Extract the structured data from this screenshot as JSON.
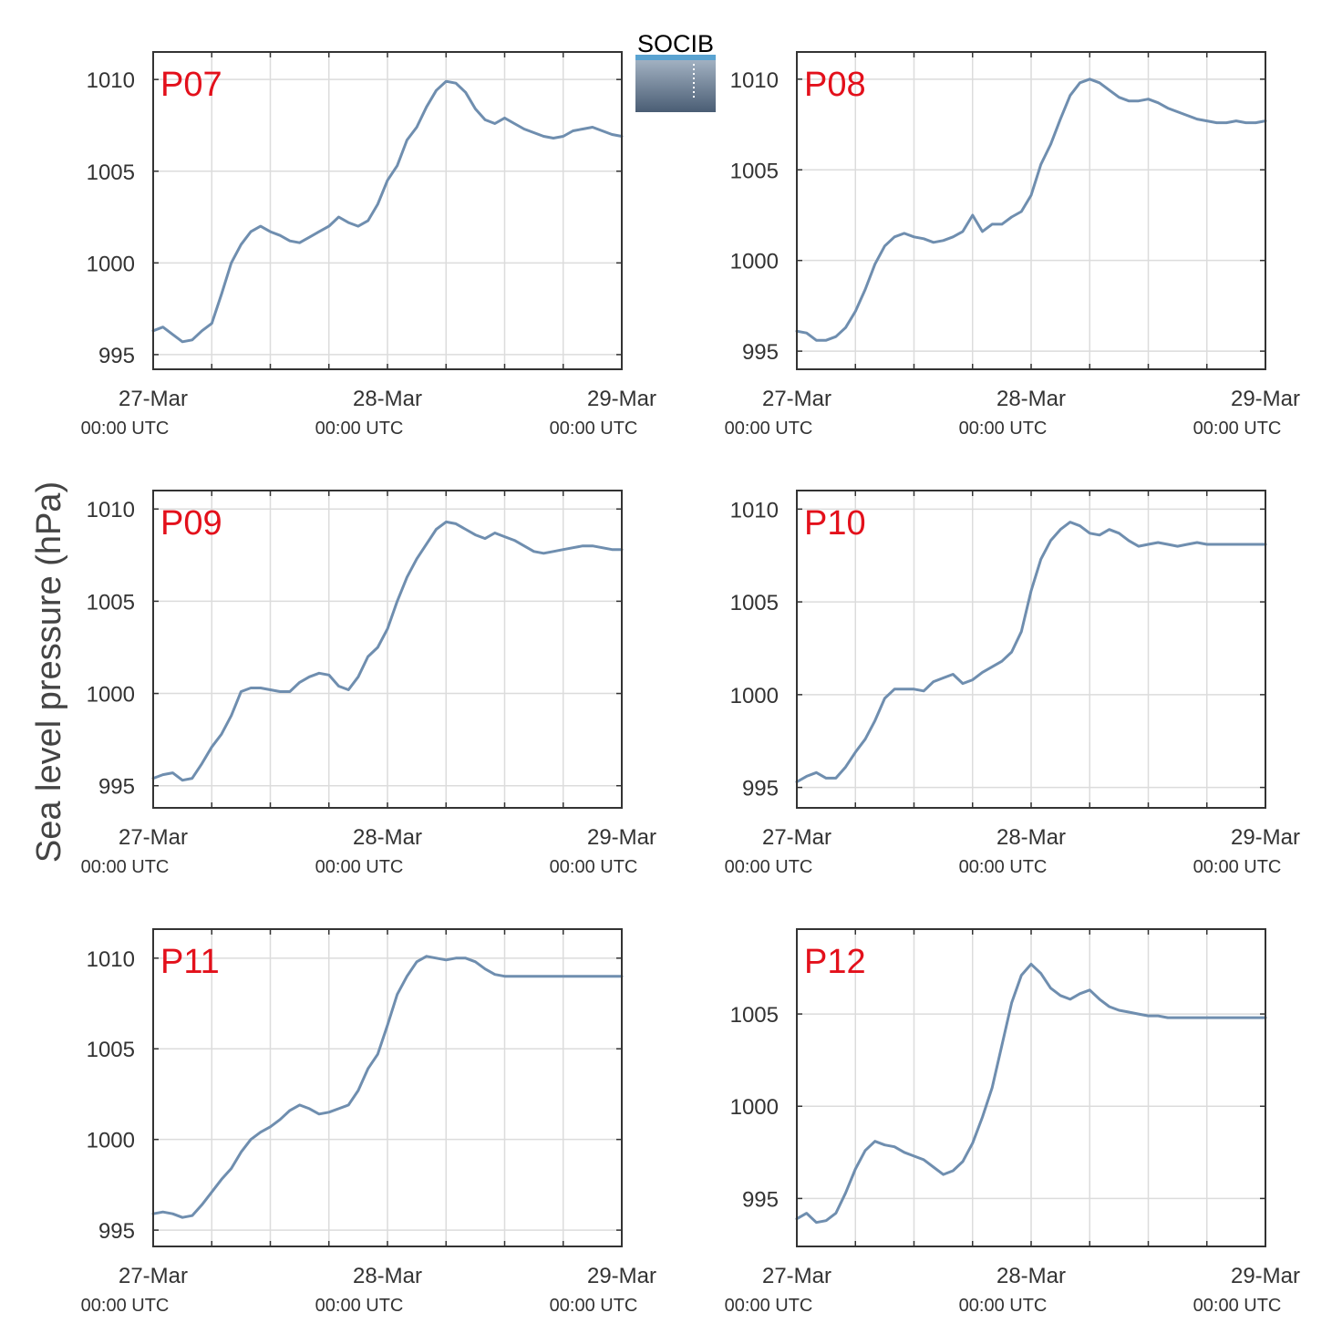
{
  "figure": {
    "ylabel": "Sea level pressure (hPa)",
    "logo_text": "SOCIB",
    "line_color": "#6f8eaf",
    "label_color": "#e3101b",
    "logo_color": "#5aa3d1",
    "grid": true
  },
  "chart_data": [
    {
      "type": "line",
      "title": "P07",
      "x_ticks": [
        {
          "date": "27-Mar",
          "time": "00:00 UTC"
        },
        {
          "date": "28-Mar",
          "time": "00:00 UTC"
        },
        {
          "date": "29-Mar",
          "time": "00:00 UTC"
        }
      ],
      "y_ticks": [
        "995",
        "1000",
        "1005",
        "1010"
      ],
      "y_tick_values": [
        995,
        1000,
        1005,
        1010
      ],
      "xlim": [
        0,
        48
      ],
      "ylim": [
        994.2,
        1011.5
      ],
      "x_hours": [
        0,
        1,
        2,
        3,
        4,
        5,
        6,
        7,
        8,
        9,
        10,
        11,
        12,
        13,
        14,
        15,
        16,
        17,
        18,
        19,
        20,
        21,
        22,
        23,
        24,
        25,
        26,
        27,
        28,
        29,
        30,
        31,
        32,
        33,
        34,
        35,
        36,
        37,
        38,
        39,
        40,
        41,
        42,
        43,
        44,
        45,
        46,
        47,
        48
      ],
      "values": [
        996.3,
        996.5,
        996.1,
        995.7,
        995.8,
        996.3,
        996.7,
        998.3,
        1000.0,
        1001.0,
        1001.7,
        1002.0,
        1001.7,
        1001.5,
        1001.2,
        1001.1,
        1001.4,
        1001.7,
        1002.0,
        1002.5,
        1002.2,
        1002.0,
        1002.3,
        1003.2,
        1004.5,
        1005.3,
        1006.7,
        1007.4,
        1008.5,
        1009.4,
        1009.9,
        1009.8,
        1009.3,
        1008.4,
        1007.8,
        1007.6,
        1007.9,
        1007.6,
        1007.3,
        1007.1,
        1006.9,
        1006.8,
        1006.9,
        1007.2,
        1007.3,
        1007.4,
        1007.2,
        1007.0,
        1006.9
      ],
      "series": [
        {
          "name": "P07"
        }
      ]
    },
    {
      "type": "line",
      "title": "P08",
      "x_ticks": [
        {
          "date": "27-Mar",
          "time": "00:00 UTC"
        },
        {
          "date": "28-Mar",
          "time": "00:00 UTC"
        },
        {
          "date": "29-Mar",
          "time": "00:00 UTC"
        }
      ],
      "y_ticks": [
        "995",
        "1000",
        "1005",
        "1010"
      ],
      "y_tick_values": [
        995,
        1000,
        1005,
        1010
      ],
      "xlim": [
        0,
        48
      ],
      "ylim": [
        994.0,
        1011.5
      ],
      "x_hours": [
        0,
        1,
        2,
        3,
        4,
        5,
        6,
        7,
        8,
        9,
        10,
        11,
        12,
        13,
        14,
        15,
        16,
        17,
        18,
        19,
        20,
        21,
        22,
        23,
        24,
        25,
        26,
        27,
        28,
        29,
        30,
        31,
        32,
        33,
        34,
        35,
        36,
        37,
        38,
        39,
        40,
        41,
        42,
        43,
        44,
        45,
        46,
        47,
        48
      ],
      "values": [
        996.1,
        996.0,
        995.6,
        995.6,
        995.8,
        996.3,
        997.2,
        998.4,
        999.8,
        1000.8,
        1001.3,
        1001.5,
        1001.3,
        1001.2,
        1001.0,
        1001.1,
        1001.3,
        1001.6,
        1002.5,
        1001.6,
        1002.0,
        1002.0,
        1002.4,
        1002.7,
        1003.6,
        1005.3,
        1006.4,
        1007.8,
        1009.1,
        1009.8,
        1010.0,
        1009.8,
        1009.4,
        1009.0,
        1008.8,
        1008.8,
        1008.9,
        1008.7,
        1008.4,
        1008.2,
        1008.0,
        1007.8,
        1007.7,
        1007.6,
        1007.6,
        1007.7,
        1007.6,
        1007.6,
        1007.7
      ],
      "series": [
        {
          "name": "P08"
        }
      ]
    },
    {
      "type": "line",
      "title": "P09",
      "x_ticks": [
        {
          "date": "27-Mar",
          "time": "00:00 UTC"
        },
        {
          "date": "28-Mar",
          "time": "00:00 UTC"
        },
        {
          "date": "29-Mar",
          "time": "00:00 UTC"
        }
      ],
      "y_ticks": [
        "995",
        "1000",
        "1005",
        "1010"
      ],
      "y_tick_values": [
        995,
        1000,
        1005,
        1010
      ],
      "xlim": [
        0,
        48
      ],
      "ylim": [
        993.8,
        1011.0
      ],
      "x_hours": [
        0,
        1,
        2,
        3,
        4,
        5,
        6,
        7,
        8,
        9,
        10,
        11,
        12,
        13,
        14,
        15,
        16,
        17,
        18,
        19,
        20,
        21,
        22,
        23,
        24,
        25,
        26,
        27,
        28,
        29,
        30,
        31,
        32,
        33,
        34,
        35,
        36,
        37,
        38,
        39,
        40,
        41,
        42,
        43,
        44,
        45,
        46,
        47,
        48
      ],
      "values": [
        995.4,
        995.6,
        995.7,
        995.3,
        995.4,
        996.2,
        997.1,
        997.8,
        998.8,
        1000.1,
        1000.3,
        1000.3,
        1000.2,
        1000.1,
        1000.1,
        1000.6,
        1000.9,
        1001.1,
        1001.0,
        1000.4,
        1000.2,
        1000.9,
        1002.0,
        1002.5,
        1003.5,
        1005.0,
        1006.3,
        1007.3,
        1008.1,
        1008.9,
        1009.3,
        1009.2,
        1008.9,
        1008.6,
        1008.4,
        1008.7,
        1008.5,
        1008.3,
        1008.0,
        1007.7,
        1007.6,
        1007.7,
        1007.8,
        1007.9,
        1008.0,
        1008.0,
        1007.9,
        1007.8,
        1007.8
      ],
      "series": [
        {
          "name": "P09"
        }
      ]
    },
    {
      "type": "line",
      "title": "P10",
      "x_ticks": [
        {
          "date": "27-Mar",
          "time": "00:00 UTC"
        },
        {
          "date": "28-Mar",
          "time": "00:00 UTC"
        },
        {
          "date": "29-Mar",
          "time": "00:00 UTC"
        }
      ],
      "y_ticks": [
        "995",
        "1000",
        "1005",
        "1010"
      ],
      "y_tick_values": [
        995,
        1000,
        1005,
        1010
      ],
      "xlim": [
        0,
        48
      ],
      "ylim": [
        993.9,
        1011.0
      ],
      "x_hours": [
        0,
        1,
        2,
        3,
        4,
        5,
        6,
        7,
        8,
        9,
        10,
        11,
        12,
        13,
        14,
        15,
        16,
        17,
        18,
        19,
        20,
        21,
        22,
        23,
        24,
        25,
        26,
        27,
        28,
        29,
        30,
        31,
        32,
        33,
        34,
        35,
        36,
        37,
        38,
        39,
        40,
        41,
        42,
        43,
        44,
        45,
        46,
        47,
        48
      ],
      "values": [
        995.3,
        995.6,
        995.8,
        995.5,
        995.5,
        996.1,
        996.9,
        997.6,
        998.6,
        999.8,
        1000.3,
        1000.3,
        1000.3,
        1000.2,
        1000.7,
        1000.9,
        1001.1,
        1000.6,
        1000.8,
        1001.2,
        1001.5,
        1001.8,
        1002.3,
        1003.4,
        1005.6,
        1007.3,
        1008.3,
        1008.9,
        1009.3,
        1009.1,
        1008.7,
        1008.6,
        1008.9,
        1008.7,
        1008.3,
        1008.0,
        1008.1,
        1008.2,
        1008.1,
        1008.0,
        1008.1,
        1008.2,
        1008.1,
        1008.1,
        1008.1,
        1008.1,
        1008.1,
        1008.1,
        1008.1
      ],
      "series": [
        {
          "name": "P10"
        }
      ]
    },
    {
      "type": "line",
      "title": "P11",
      "x_ticks": [
        {
          "date": "27-Mar",
          "time": "00:00 UTC"
        },
        {
          "date": "28-Mar",
          "time": "00:00 UTC"
        },
        {
          "date": "29-Mar",
          "time": "00:00 UTC"
        }
      ],
      "y_ticks": [
        "995",
        "1000",
        "1005",
        "1010"
      ],
      "y_tick_values": [
        995,
        1000,
        1005,
        1010
      ],
      "xlim": [
        0,
        48
      ],
      "ylim": [
        994.1,
        1011.6
      ],
      "x_hours": [
        0,
        1,
        2,
        3,
        4,
        5,
        6,
        7,
        8,
        9,
        10,
        11,
        12,
        13,
        14,
        15,
        16,
        17,
        18,
        19,
        20,
        21,
        22,
        23,
        24,
        25,
        26,
        27,
        28,
        29,
        30,
        31,
        32,
        33,
        34,
        35,
        36,
        37,
        38,
        39,
        40,
        41,
        42,
        43,
        44,
        45,
        46,
        47,
        48
      ],
      "values": [
        995.9,
        996.0,
        995.9,
        995.7,
        995.8,
        996.4,
        997.1,
        997.8,
        998.4,
        999.3,
        1000.0,
        1000.4,
        1000.7,
        1001.1,
        1001.6,
        1001.9,
        1001.7,
        1001.4,
        1001.5,
        1001.7,
        1001.9,
        1002.7,
        1003.9,
        1004.7,
        1006.3,
        1008.0,
        1009.0,
        1009.8,
        1010.1,
        1010.0,
        1009.9,
        1010.0,
        1010.0,
        1009.8,
        1009.4,
        1009.1,
        1009.0,
        1009.0,
        1009.0,
        1009.0,
        1009.0,
        1009.0,
        1009.0,
        1009.0,
        1009.0,
        1009.0,
        1009.0,
        1009.0,
        1009.0
      ],
      "series": [
        {
          "name": "P11"
        }
      ]
    },
    {
      "type": "line",
      "title": "P12",
      "x_ticks": [
        {
          "date": "27-Mar",
          "time": "00:00 UTC"
        },
        {
          "date": "28-Mar",
          "time": "00:00 UTC"
        },
        {
          "date": "29-Mar",
          "time": "00:00 UTC"
        }
      ],
      "y_ticks": [
        "995",
        "1000",
        "1005"
      ],
      "y_tick_values": [
        995,
        1000,
        1005
      ],
      "xlim": [
        0,
        48
      ],
      "ylim": [
        992.4,
        1009.6
      ],
      "x_hours": [
        0,
        1,
        2,
        3,
        4,
        5,
        6,
        7,
        8,
        9,
        10,
        11,
        12,
        13,
        14,
        15,
        16,
        17,
        18,
        19,
        20,
        21,
        22,
        23,
        24,
        25,
        26,
        27,
        28,
        29,
        30,
        31,
        32,
        33,
        34,
        35,
        36,
        37,
        38,
        39,
        40,
        41,
        42,
        43,
        44,
        45,
        46,
        47,
        48
      ],
      "values": [
        993.9,
        994.2,
        993.7,
        993.8,
        994.2,
        995.3,
        996.6,
        997.6,
        998.1,
        997.9,
        997.8,
        997.5,
        997.3,
        997.1,
        996.7,
        996.3,
        996.5,
        997.0,
        998.0,
        999.4,
        1001.0,
        1003.3,
        1005.6,
        1007.1,
        1007.7,
        1007.2,
        1006.4,
        1006.0,
        1005.8,
        1006.1,
        1006.3,
        1005.8,
        1005.4,
        1005.2,
        1005.1,
        1005.0,
        1004.9,
        1004.9,
        1004.8,
        1004.8,
        1004.8,
        1004.8,
        1004.8,
        1004.8,
        1004.8,
        1004.8,
        1004.8,
        1004.8,
        1004.8
      ],
      "series": [
        {
          "name": "P12"
        }
      ]
    }
  ]
}
